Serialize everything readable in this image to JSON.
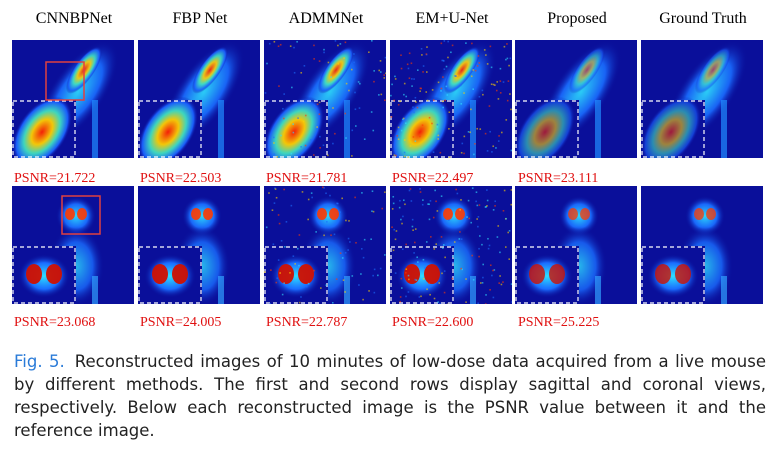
{
  "figure": {
    "columns": [
      "CNNBPNet",
      "FBP Net",
      "ADMMNet",
      "EM+U-Net",
      "Proposed",
      "Ground Truth"
    ],
    "rows": [
      {
        "view": "sagittal",
        "psnr": [
          "PSNR=21.722",
          "PSNR=22.503",
          "PSNR=21.781",
          "PSNR=22.497",
          "PSNR=23.111",
          ""
        ]
      },
      {
        "view": "coronal",
        "psnr": [
          "PSNR=23.068",
          "PSNR=24.005",
          "PSNR=22.787",
          "PSNR=22.600",
          "PSNR=25.225",
          ""
        ]
      }
    ],
    "colors": {
      "background": "#0a0f9a",
      "hot": "#ff3a00",
      "psnr_text": "#e01010",
      "roi_box": "#e04040"
    }
  },
  "caption": {
    "label": "Fig. 5.",
    "text": "Reconstructed images of 10 minutes of low-dose data acquired from a live mouse by different methods. The first and second rows display sagittal and coronal views, respectively. Below each reconstructed image is the PSNR value between it and the reference image."
  }
}
